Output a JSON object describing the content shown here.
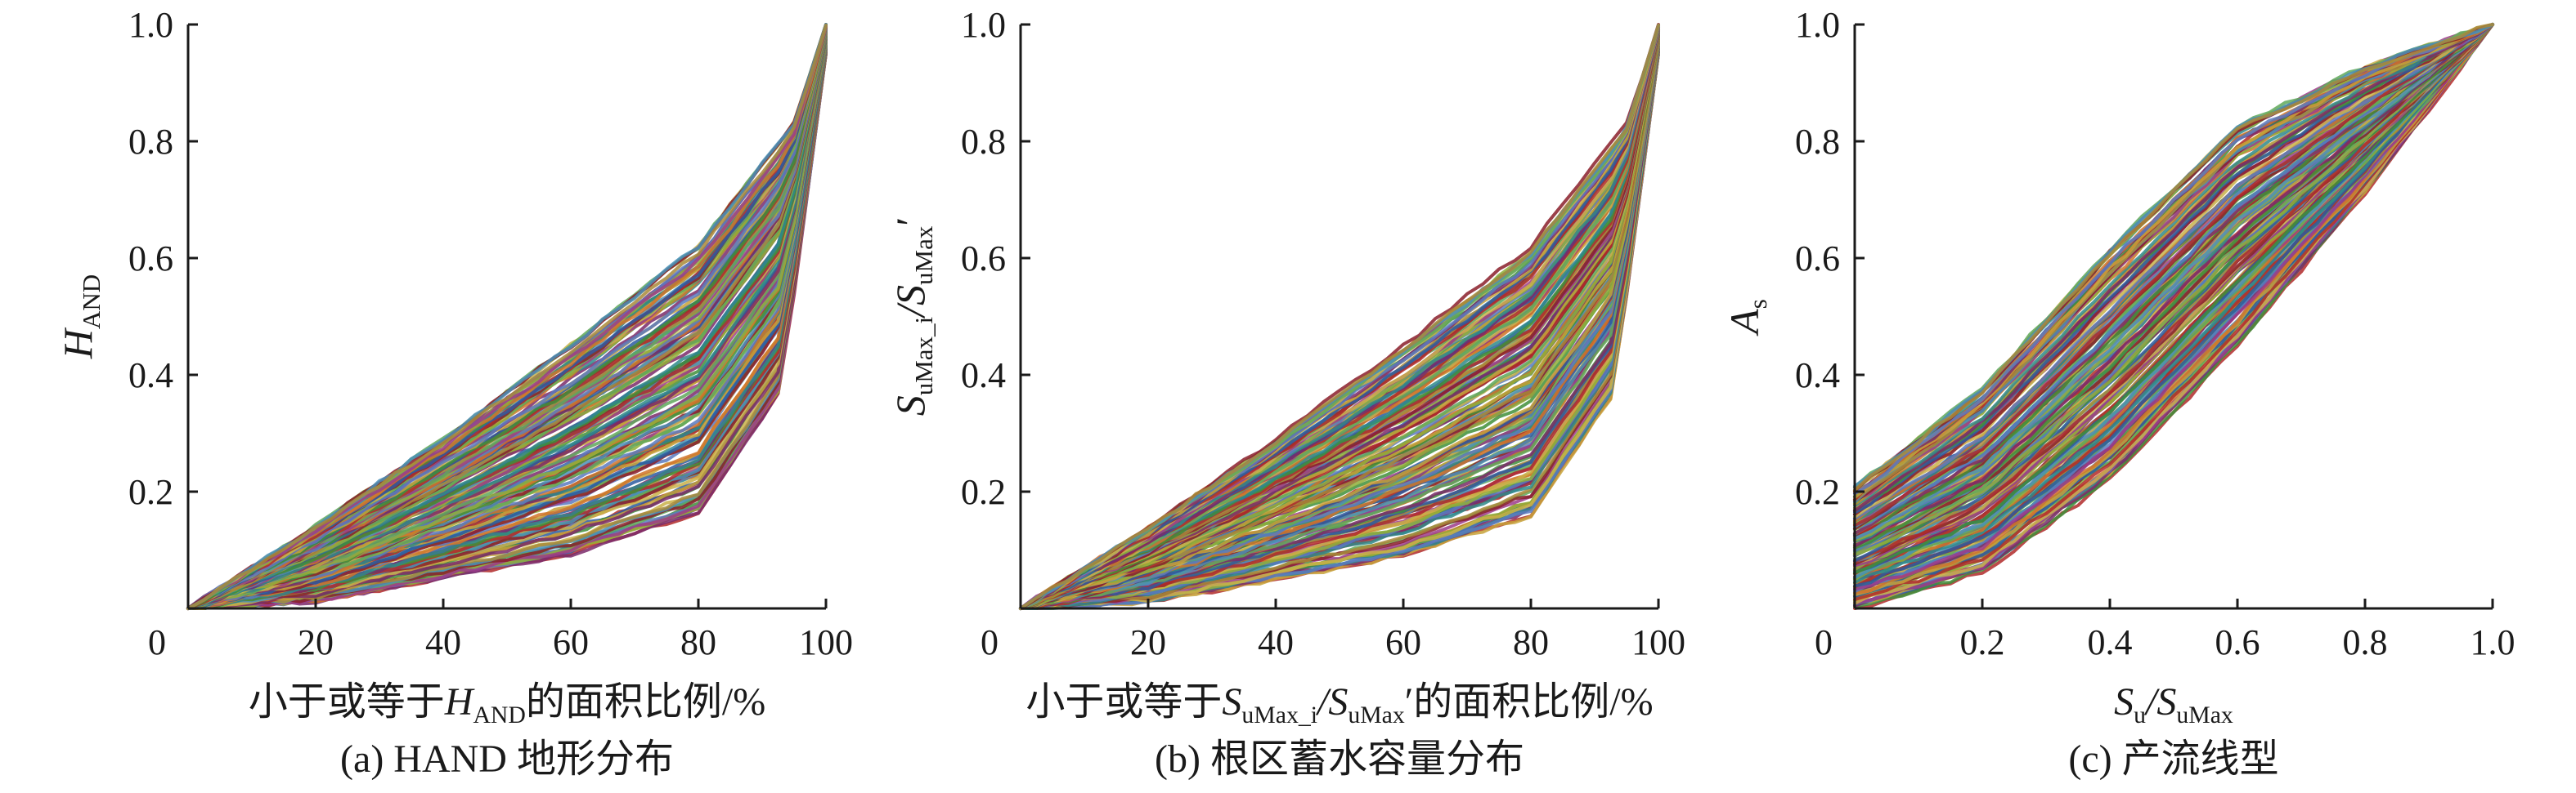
{
  "chart_data": [
    {
      "type": "line",
      "panel": "a",
      "caption": "(a) HAND 地形分布",
      "xlabel": {
        "pre": "小于或等于",
        "var": "H",
        "sub": "AND",
        "var2": "",
        "sub2": "",
        "prime": "",
        "post": "的面积比例/%"
      },
      "ylabel": {
        "var": "H",
        "sub": "AND",
        "var2": "",
        "sub2": "",
        "prime": ""
      },
      "xlim": [
        0,
        100
      ],
      "ylim": [
        0,
        1
      ],
      "xticks": [
        "0",
        "20",
        "40",
        "60",
        "80",
        "100"
      ],
      "yticks": [
        "0.2",
        "0.4",
        "0.6",
        "0.8",
        "1.0"
      ],
      "series_count": 150,
      "family": "area_cdf",
      "envelope_upper": [
        [
          0,
          0
        ],
        [
          20,
          0.14
        ],
        [
          40,
          0.29
        ],
        [
          60,
          0.45
        ],
        [
          80,
          0.62
        ],
        [
          95,
          0.83
        ],
        [
          100,
          1.0
        ]
      ],
      "envelope_lower": [
        [
          0,
          0
        ],
        [
          20,
          0.01
        ],
        [
          40,
          0.05
        ],
        [
          60,
          0.09
        ],
        [
          80,
          0.16
        ],
        [
          93,
          0.37
        ],
        [
          100,
          0.95
        ]
      ]
    },
    {
      "type": "line",
      "panel": "b",
      "caption": "(b) 根区蓄水容量分布",
      "xlabel": {
        "pre": "小于或等于",
        "var": "S",
        "sub": "uMax_i",
        "var2": "/S",
        "sub2": "uMax",
        "prime": "′",
        "post": "的面积比例/%"
      },
      "ylabel": {
        "var": "S",
        "sub": "uMax_i",
        "var2": "/S",
        "sub2": "uMax",
        "prime": "′"
      },
      "xlim": [
        0,
        100
      ],
      "ylim": [
        0,
        1
      ],
      "xticks": [
        "0",
        "20",
        "40",
        "60",
        "80",
        "100"
      ],
      "yticks": [
        "0.2",
        "0.4",
        "0.6",
        "0.8",
        "1.0"
      ],
      "series_count": 150,
      "family": "area_cdf",
      "envelope_upper": [
        [
          0,
          0
        ],
        [
          20,
          0.14
        ],
        [
          40,
          0.29
        ],
        [
          60,
          0.45
        ],
        [
          80,
          0.62
        ],
        [
          95,
          0.83
        ],
        [
          100,
          1.0
        ]
      ],
      "envelope_lower": [
        [
          0,
          0
        ],
        [
          20,
          0.01
        ],
        [
          40,
          0.05
        ],
        [
          60,
          0.09
        ],
        [
          80,
          0.16
        ],
        [
          93,
          0.37
        ],
        [
          100,
          0.95
        ]
      ]
    },
    {
      "type": "line",
      "panel": "c",
      "caption": "(c) 产流线型",
      "xlabel": {
        "pre": "",
        "var": "S",
        "sub": "u",
        "var2": "/S",
        "sub2": "uMax",
        "prime": "",
        "post": ""
      },
      "ylabel": {
        "var": "A",
        "sub": "s",
        "var2": "",
        "sub2": "",
        "prime": ""
      },
      "xlim": [
        0,
        1
      ],
      "ylim": [
        0,
        1
      ],
      "xticks": [
        "0",
        "0.2",
        "0.4",
        "0.6",
        "0.8",
        "1.0"
      ],
      "yticks": [
        "0.2",
        "0.4",
        "0.6",
        "0.8",
        "1.0"
      ],
      "series_count": 150,
      "family": "runoff_curve",
      "envelope_upper": [
        [
          0,
          0.21
        ],
        [
          0.2,
          0.38
        ],
        [
          0.4,
          0.62
        ],
        [
          0.6,
          0.83
        ],
        [
          0.8,
          0.93
        ],
        [
          1.0,
          1.0
        ]
      ],
      "envelope_lower": [
        [
          0,
          0.0
        ],
        [
          0.2,
          0.06
        ],
        [
          0.4,
          0.22
        ],
        [
          0.6,
          0.45
        ],
        [
          0.8,
          0.71
        ],
        [
          1.0,
          1.0
        ]
      ]
    }
  ],
  "colors": {
    "axis": "#1a1a1a",
    "palette": [
      "#b02a2a",
      "#2c5aa0",
      "#3f8f3a",
      "#c7a23a",
      "#7a2a6a",
      "#2f8a8a",
      "#d0742a",
      "#5a7ac0",
      "#8fae3a",
      "#9c3b8a",
      "#c9b24a",
      "#5fa85a",
      "#8a1f2a",
      "#4a90b8",
      "#a88a3a"
    ]
  }
}
